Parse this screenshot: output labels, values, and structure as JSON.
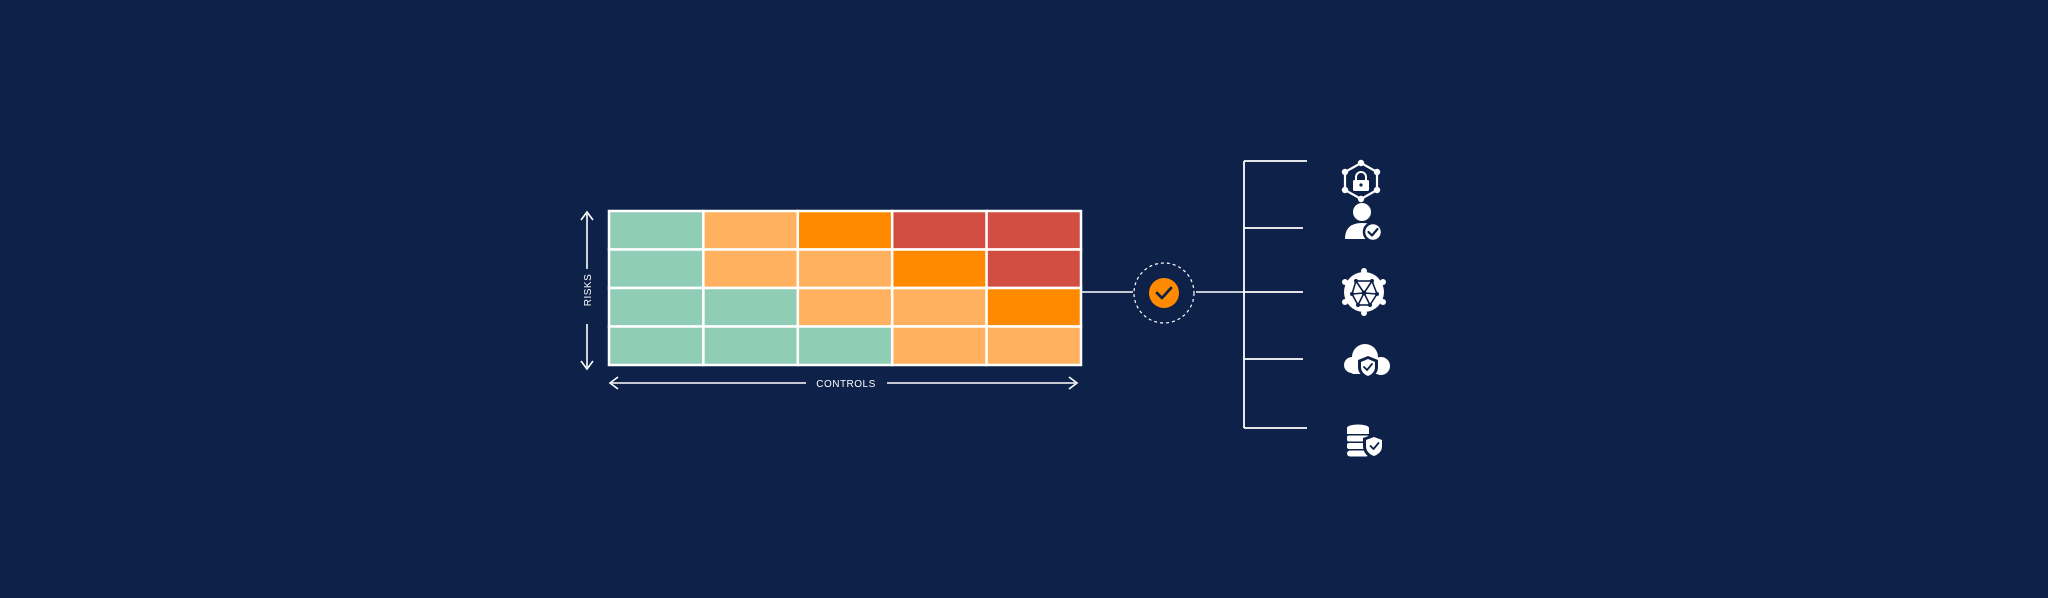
{
  "theme": {
    "background": "#0e2249",
    "line": "#ffffff",
    "accent": "#ff8a00"
  },
  "matrix": {
    "y_axis_label": "RISKS",
    "x_axis_label": "CONTROLS",
    "palette": {
      "low": "#8fcdb6",
      "medium": "#ffb15f",
      "high": "#ff8a00",
      "critical": "#d24e42"
    },
    "rows": [
      [
        "low",
        "medium",
        "high",
        "critical",
        "critical"
      ],
      [
        "low",
        "medium",
        "medium",
        "high",
        "critical"
      ],
      [
        "low",
        "low",
        "medium",
        "medium",
        "high"
      ],
      [
        "low",
        "low",
        "low",
        "medium",
        "medium"
      ]
    ]
  },
  "hub": {
    "icon": "check-icon"
  },
  "branches": [
    {
      "icon": "network-lock-icon"
    },
    {
      "icon": "user-check-icon"
    },
    {
      "icon": "neural-network-icon"
    },
    {
      "icon": "cloud-shield-icon"
    },
    {
      "icon": "database-shield-icon"
    }
  ]
}
